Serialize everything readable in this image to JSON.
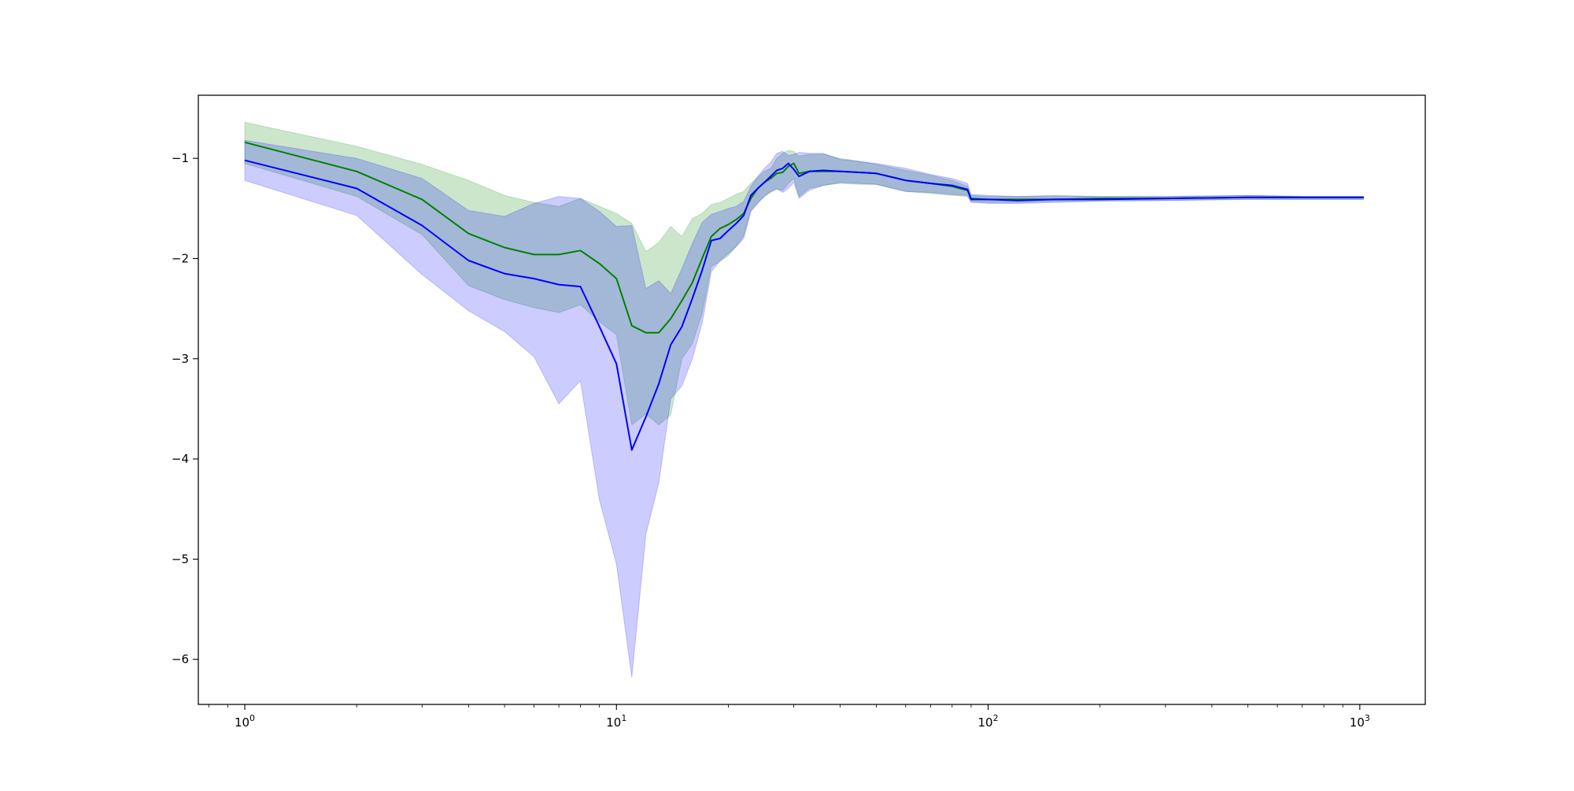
{
  "chart_data": {
    "type": "line",
    "title": "",
    "xlabel": "",
    "ylabel": "",
    "xscale": "log",
    "xlim": [
      0.75,
      1500
    ],
    "ylim": [
      -6.45,
      -0.37
    ],
    "grid": false,
    "legend": "none",
    "x_ticks": [
      {
        "value": 1,
        "base": "10",
        "exp": "0"
      },
      {
        "value": 10,
        "base": "10",
        "exp": "1"
      },
      {
        "value": 100,
        "base": "10",
        "exp": "2"
      },
      {
        "value": 1000,
        "base": "10",
        "exp": "3"
      }
    ],
    "y_ticks": [
      {
        "value": -1,
        "label": "−1"
      },
      {
        "value": -2,
        "label": "−2"
      },
      {
        "value": -3,
        "label": "−3"
      },
      {
        "value": -4,
        "label": "−4"
      },
      {
        "value": -5,
        "label": "−5"
      },
      {
        "value": -6,
        "label": "−6"
      }
    ],
    "series": [
      {
        "color": "#008000",
        "band_alpha": 0.2,
        "x": [
          1,
          2,
          3,
          4,
          5,
          6,
          7,
          8,
          9,
          10,
          11,
          12,
          13,
          14,
          15,
          16,
          17,
          18,
          19,
          20,
          21,
          22,
          23,
          24,
          25,
          26,
          27,
          28,
          29,
          30,
          31,
          33,
          36,
          40,
          45,
          50,
          60,
          70,
          80,
          88,
          90,
          100,
          120,
          150,
          200,
          300,
          500,
          700,
          1024
        ],
        "mean": [
          -0.84,
          -1.13,
          -1.41,
          -1.75,
          -1.89,
          -1.96,
          -1.96,
          -1.92,
          -2.05,
          -2.2,
          -2.67,
          -2.74,
          -2.74,
          -2.6,
          -2.42,
          -2.24,
          -2.0,
          -1.78,
          -1.7,
          -1.66,
          -1.61,
          -1.55,
          -1.4,
          -1.3,
          -1.24,
          -1.2,
          -1.15,
          -1.14,
          -1.08,
          -1.05,
          -1.15,
          -1.13,
          -1.13,
          -1.13,
          -1.14,
          -1.15,
          -1.22,
          -1.25,
          -1.28,
          -1.32,
          -1.4,
          -1.41,
          -1.41,
          -1.41,
          -1.4,
          -1.4,
          -1.39,
          -1.39,
          -1.39
        ],
        "upper": [
          -0.64,
          -0.88,
          -1.06,
          -1.22,
          -1.37,
          -1.44,
          -1.48,
          -1.4,
          -1.48,
          -1.55,
          -1.65,
          -1.93,
          -1.84,
          -1.68,
          -1.78,
          -1.6,
          -1.55,
          -1.46,
          -1.44,
          -1.4,
          -1.36,
          -1.33,
          -1.25,
          -1.19,
          -1.13,
          -1.1,
          -1.0,
          -0.95,
          -0.92,
          -0.93,
          -0.98,
          -0.96,
          -0.96,
          -1.0,
          -1.03,
          -1.06,
          -1.12,
          -1.17,
          -1.22,
          -1.28,
          -1.37,
          -1.38,
          -1.38,
          -1.38,
          -1.38,
          -1.38,
          -1.37,
          -1.38,
          -1.38
        ],
        "lower": [
          -1.05,
          -1.38,
          -1.76,
          -2.27,
          -2.41,
          -2.49,
          -2.54,
          -2.46,
          -2.63,
          -2.76,
          -3.66,
          -3.55,
          -3.66,
          -3.56,
          -3.0,
          -2.85,
          -2.55,
          -2.08,
          -2.03,
          -1.97,
          -1.88,
          -1.77,
          -1.52,
          -1.44,
          -1.38,
          -1.34,
          -1.31,
          -1.32,
          -1.25,
          -1.2,
          -1.38,
          -1.3,
          -1.27,
          -1.25,
          -1.26,
          -1.26,
          -1.33,
          -1.35,
          -1.37,
          -1.38,
          -1.43,
          -1.44,
          -1.44,
          -1.43,
          -1.42,
          -1.42,
          -1.41,
          -1.41,
          -1.41
        ]
      },
      {
        "color": "#0000ff",
        "band_alpha": 0.2,
        "x": [
          1,
          2,
          3,
          4,
          5,
          6,
          7,
          8,
          9,
          10,
          11,
          12,
          13,
          14,
          15,
          16,
          17,
          18,
          19,
          20,
          21,
          22,
          23,
          24,
          25,
          26,
          27,
          28,
          29,
          30,
          31,
          33,
          36,
          40,
          45,
          50,
          60,
          70,
          80,
          88,
          90,
          100,
          120,
          150,
          200,
          300,
          500,
          700,
          1024
        ],
        "mean": [
          -1.02,
          -1.3,
          -1.67,
          -2.02,
          -2.15,
          -2.2,
          -2.26,
          -2.28,
          -2.68,
          -3.05,
          -3.91,
          -3.58,
          -3.25,
          -2.86,
          -2.68,
          -2.4,
          -2.12,
          -1.82,
          -1.8,
          -1.72,
          -1.65,
          -1.57,
          -1.37,
          -1.3,
          -1.24,
          -1.18,
          -1.12,
          -1.1,
          -1.05,
          -1.11,
          -1.18,
          -1.13,
          -1.12,
          -1.13,
          -1.14,
          -1.15,
          -1.22,
          -1.25,
          -1.27,
          -1.31,
          -1.41,
          -1.41,
          -1.42,
          -1.41,
          -1.41,
          -1.4,
          -1.39,
          -1.39,
          -1.39
        ],
        "upper": [
          -0.82,
          -1.0,
          -1.2,
          -1.52,
          -1.58,
          -1.45,
          -1.38,
          -1.4,
          -1.53,
          -1.68,
          -1.67,
          -2.3,
          -2.22,
          -2.35,
          -2.1,
          -1.85,
          -1.64,
          -1.56,
          -1.53,
          -1.5,
          -1.48,
          -1.43,
          -1.28,
          -1.18,
          -1.1,
          -1.04,
          -0.95,
          -0.93,
          -0.97,
          -0.96,
          -0.94,
          -0.95,
          -0.95,
          -1.01,
          -1.03,
          -1.05,
          -1.1,
          -1.16,
          -1.2,
          -1.25,
          -1.36,
          -1.37,
          -1.38,
          -1.37,
          -1.38,
          -1.38,
          -1.37,
          -1.38,
          -1.38
        ],
        "lower": [
          -1.22,
          -1.57,
          -2.16,
          -2.52,
          -2.73,
          -2.98,
          -3.45,
          -3.22,
          -4.41,
          -5.05,
          -6.18,
          -4.75,
          -4.24,
          -3.4,
          -3.27,
          -3.0,
          -2.65,
          -2.13,
          -2.02,
          -1.95,
          -1.88,
          -1.8,
          -1.53,
          -1.45,
          -1.38,
          -1.33,
          -1.3,
          -1.34,
          -1.3,
          -1.24,
          -1.4,
          -1.32,
          -1.27,
          -1.24,
          -1.25,
          -1.26,
          -1.33,
          -1.34,
          -1.36,
          -1.37,
          -1.44,
          -1.45,
          -1.45,
          -1.44,
          -1.43,
          -1.42,
          -1.41,
          -1.41,
          -1.41
        ]
      }
    ]
  }
}
